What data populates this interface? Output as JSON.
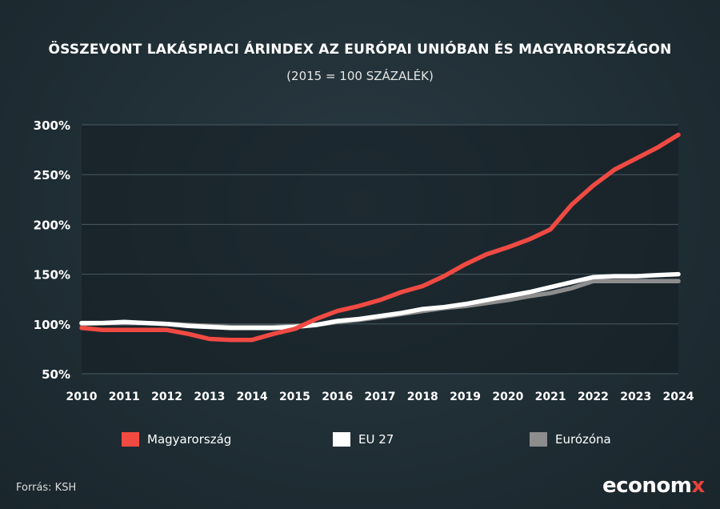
{
  "header": {
    "title": "ÖSSZEVONT LAKÁSPIACI ÁRINDEX AZ EURÓPAI UNIÓBAN ÉS MAGYARORSZÁGON",
    "subtitle": "(2015 = 100 SZÁZALÉK)"
  },
  "footer": {
    "source": "Forrás: KSH",
    "logo_main": "econom",
    "logo_accent": "x"
  },
  "chart_data": {
    "type": "line",
    "x": [
      2010,
      2010.5,
      2011,
      2011.5,
      2012,
      2012.5,
      2013,
      2013.5,
      2014,
      2014.5,
      2015,
      2015.5,
      2016,
      2016.5,
      2017,
      2017.5,
      2018,
      2018.5,
      2019,
      2019.5,
      2020,
      2020.5,
      2021,
      2021.5,
      2022,
      2022.5,
      2023,
      2023.5,
      2024
    ],
    "xticks": [
      "2010",
      "2011",
      "2012",
      "2013",
      "2014",
      "2015",
      "2016",
      "2017",
      "2018",
      "2019",
      "2020",
      "2021",
      "2022",
      "2023",
      "2024"
    ],
    "yticks": [
      50,
      100,
      150,
      200,
      250,
      300
    ],
    "ytick_labels": [
      "50%",
      "100%",
      "150%",
      "200%",
      "250%",
      "300%"
    ],
    "ylim": [
      50,
      300
    ],
    "xlim": [
      2010,
      2024
    ],
    "grid": true,
    "legend_position": "bottom",
    "series": [
      {
        "name": "Magyarország",
        "color": "#f04a43",
        "values": [
          96,
          94,
          94,
          94,
          94,
          90,
          85,
          84,
          84,
          90,
          95,
          105,
          113,
          118,
          124,
          132,
          138,
          148,
          160,
          170,
          177,
          185,
          195,
          220,
          239,
          255,
          266,
          277,
          290
        ]
      },
      {
        "name": "EU 27",
        "color": "#ffffff",
        "values": [
          101,
          101,
          102,
          101,
          100,
          98,
          97,
          96,
          96,
          96,
          97,
          99,
          103,
          105,
          108,
          111,
          115,
          117,
          120,
          124,
          128,
          132,
          137,
          142,
          147,
          148,
          148,
          149,
          150
        ]
      },
      {
        "name": "Eurózóna",
        "color": "#8d8d8d",
        "values": [
          100,
          101,
          101,
          101,
          100,
          99,
          98,
          97,
          97,
          97,
          98,
          99,
          102,
          104,
          107,
          110,
          113,
          116,
          118,
          121,
          124,
          128,
          131,
          136,
          143,
          143,
          143,
          143,
          143
        ]
      }
    ]
  }
}
